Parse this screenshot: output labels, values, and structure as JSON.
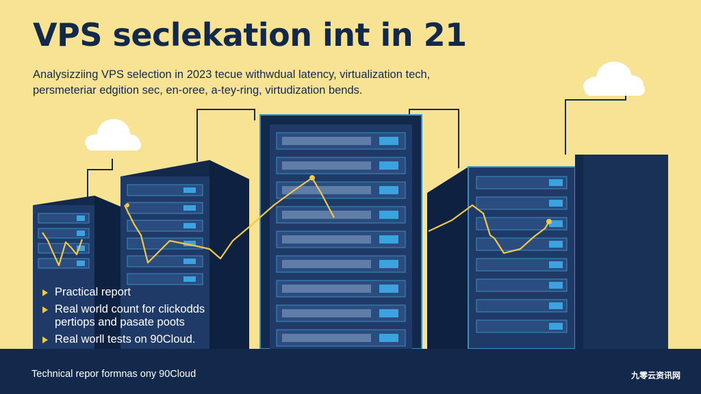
{
  "header": {
    "title": "VPS seclekation int in 21",
    "subtitle_lines": [
      "Analysizziing VPS selection in 2023 tecue withwdual latency, virtualization tech,",
      "persmeteriar edgition sec, en-oree, a-tey-ring, virtudization bends."
    ]
  },
  "bullets": [
    {
      "lines": [
        "Practical report"
      ]
    },
    {
      "lines": [
        "Real world count for clickodds",
        "pertiops and pasate poots"
      ]
    },
    {
      "lines": [
        "Real worll tests on 90Cloud."
      ]
    }
  ],
  "footer": {
    "left_text": "Technical repor formnas ony 90Cloud",
    "right_text": "九零云资讯网"
  },
  "colors": {
    "background": "#f8e394",
    "navy": "#13294b",
    "server_body": "#1f3a66",
    "server_edge": "#3a8fc4",
    "slot_light": "#3aa3e0",
    "chart_line": "#f2c84b",
    "cloud": "#ffffff"
  },
  "icons": [
    "server-rack-icon",
    "cloud-icon",
    "bullet-triangle-icon"
  ]
}
